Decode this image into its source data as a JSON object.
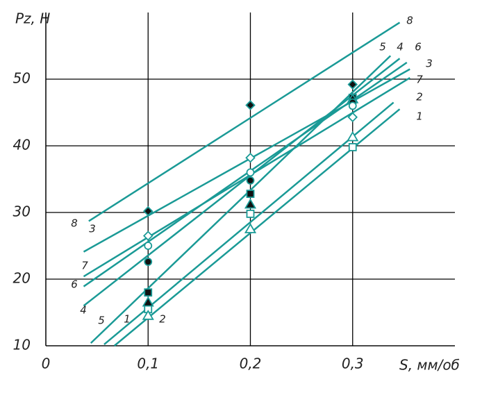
{
  "chart_data": {
    "type": "scatter-fit",
    "ylabel": "Pz, Н",
    "xlabel": "S, мм/об",
    "xlim": [
      0,
      0.4
    ],
    "ylim": [
      10,
      60
    ],
    "xticks": [
      0,
      {
        "value": 0.1,
        "label": "0,1"
      },
      {
        "value": 0.2,
        "label": "0,2"
      },
      {
        "value": 0.3,
        "label": "0,3"
      }
    ],
    "yticks": [
      10,
      20,
      30,
      40,
      50
    ],
    "grid": true,
    "color": "#1a9a96",
    "x": [
      0.1,
      0.2,
      0.3
    ],
    "series": [
      {
        "name": "1",
        "marker": "square-open",
        "values": [
          15.5,
          29.8,
          39.8
        ],
        "fit_x": [
          0.067,
          0.346
        ],
        "fit_y": [
          10,
          45.5
        ]
      },
      {
        "name": "2",
        "marker": "triangle-open",
        "values": [
          14.5,
          27.5,
          41.3
        ],
        "fit_x": [
          0.057,
          0.34
        ],
        "fit_y": [
          10.2,
          46.5
        ]
      },
      {
        "name": "3",
        "marker": "diamond-open",
        "values": [
          26.5,
          38.2,
          44.3
        ],
        "fit_x": [
          0.037,
          0.356
        ],
        "fit_y": [
          24.1,
          51.5
        ]
      },
      {
        "name": "4",
        "marker": "square-filled",
        "values": [
          18,
          32.8,
          47.2
        ],
        "fit_x": [
          0.037,
          0.346
        ],
        "fit_y": [
          16,
          53.1
        ]
      },
      {
        "name": "5",
        "marker": "triangle-filled",
        "values": [
          16.5,
          31.2,
          47
        ],
        "fit_x": [
          0.044,
          0.337
        ],
        "fit_y": [
          10.4,
          53.5
        ]
      },
      {
        "name": "6",
        "marker": "circle-filled",
        "values": [
          22.6,
          34.8,
          46.5
        ],
        "fit_x": [
          0.037,
          0.353
        ],
        "fit_y": [
          18.9,
          52.5
        ]
      },
      {
        "name": "7",
        "marker": "circle-open",
        "values": [
          25,
          36,
          46
        ],
        "fit_x": [
          0.037,
          0.356
        ],
        "fit_y": [
          20.4,
          50.2
        ]
      },
      {
        "name": "8",
        "marker": "diamond-filled",
        "values": [
          30.2,
          46.1,
          49.2
        ],
        "fit_x": [
          0.042,
          0.346
        ],
        "fit_y": [
          28.7,
          58.5
        ]
      }
    ]
  }
}
